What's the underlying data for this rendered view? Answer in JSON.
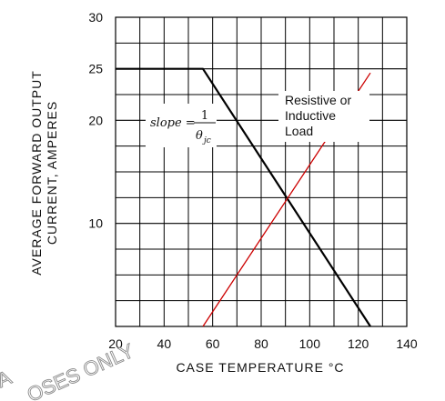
{
  "chart_data": {
    "type": "line",
    "xlabel": "CASE TEMPERATURE °C",
    "ylabel_lines": [
      "AVERAGE FORWARD OUTPUT",
      "CURRENT, AMPERES"
    ],
    "xlim": [
      20,
      140
    ],
    "ylim": [
      0,
      30
    ],
    "x_ticks": [
      20,
      40,
      60,
      80,
      100,
      120,
      140
    ],
    "y_ticks": [
      10,
      20,
      25,
      30
    ],
    "grid": true,
    "series": [
      {
        "key": "derating",
        "color": "#000000",
        "x": [
          20,
          56,
          125
        ],
        "y": [
          25,
          25,
          -0.5
        ]
      },
      {
        "key": "load",
        "color": "#cc0000",
        "x": [
          56,
          125
        ],
        "y": [
          -0.5,
          24.6
        ]
      }
    ],
    "annotations": {
      "load_lines": [
        "Resistive or",
        "Inductive",
        "Load"
      ],
      "slope_lhs": "slope =",
      "slope_num": "1",
      "slope_den": "θ",
      "slope_den_sub": "jc"
    }
  },
  "watermark_lines": [
    "A",
    "OSES ONLY"
  ]
}
